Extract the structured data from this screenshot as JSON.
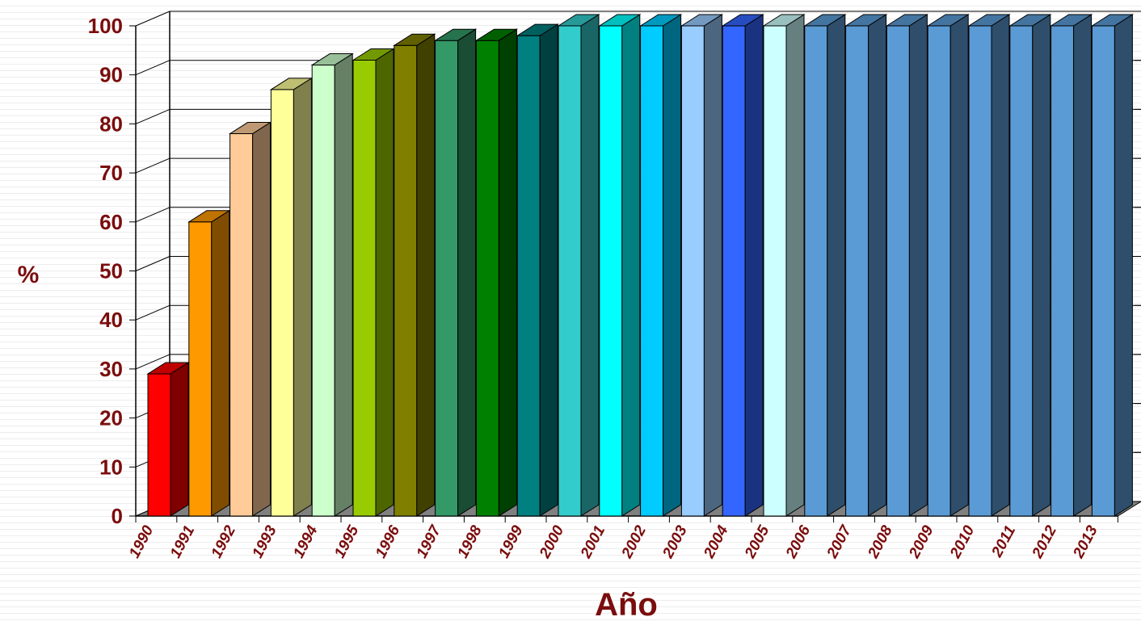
{
  "chart_data": {
    "type": "bar",
    "xlabel": "Año",
    "ylabel": "%",
    "ylim": [
      0,
      100
    ],
    "yticks": [
      0,
      10,
      20,
      30,
      40,
      50,
      60,
      70,
      80,
      90,
      100
    ],
    "categories": [
      "1990",
      "1991",
      "1992",
      "1993",
      "1994",
      "1995",
      "1996",
      "1997",
      "1998",
      "1999",
      "2000",
      "2001",
      "2002",
      "2003",
      "2004",
      "2005",
      "2006",
      "2007",
      "2008",
      "2009",
      "2010",
      "2011",
      "2012",
      "2013"
    ],
    "values": [
      29,
      60,
      78,
      87,
      92,
      93,
      96,
      97,
      97,
      98,
      100,
      100,
      100,
      100,
      100,
      100,
      100,
      100,
      100,
      100,
      100,
      100,
      100,
      100
    ],
    "bar_colors": [
      "#ff0000",
      "#ff9900",
      "#ffcc99",
      "#ffff99",
      "#ccffcc",
      "#99cc00",
      "#808000",
      "#339966",
      "#008000",
      "#008080",
      "#33cccc",
      "#00ffff",
      "#00ccff",
      "#99ccff",
      "#3366ff",
      "#ccffff",
      "#5b9bd5",
      "#5b9bd5",
      "#5b9bd5",
      "#5b9bd5",
      "#5b9bd5",
      "#5b9bd5",
      "#5b9bd5",
      "#5b9bd5"
    ],
    "grid": true,
    "legend": "none"
  },
  "colors": {
    "label_color": "#7b0d0d",
    "floor_color": "#808080",
    "grid_color": "#000000"
  }
}
